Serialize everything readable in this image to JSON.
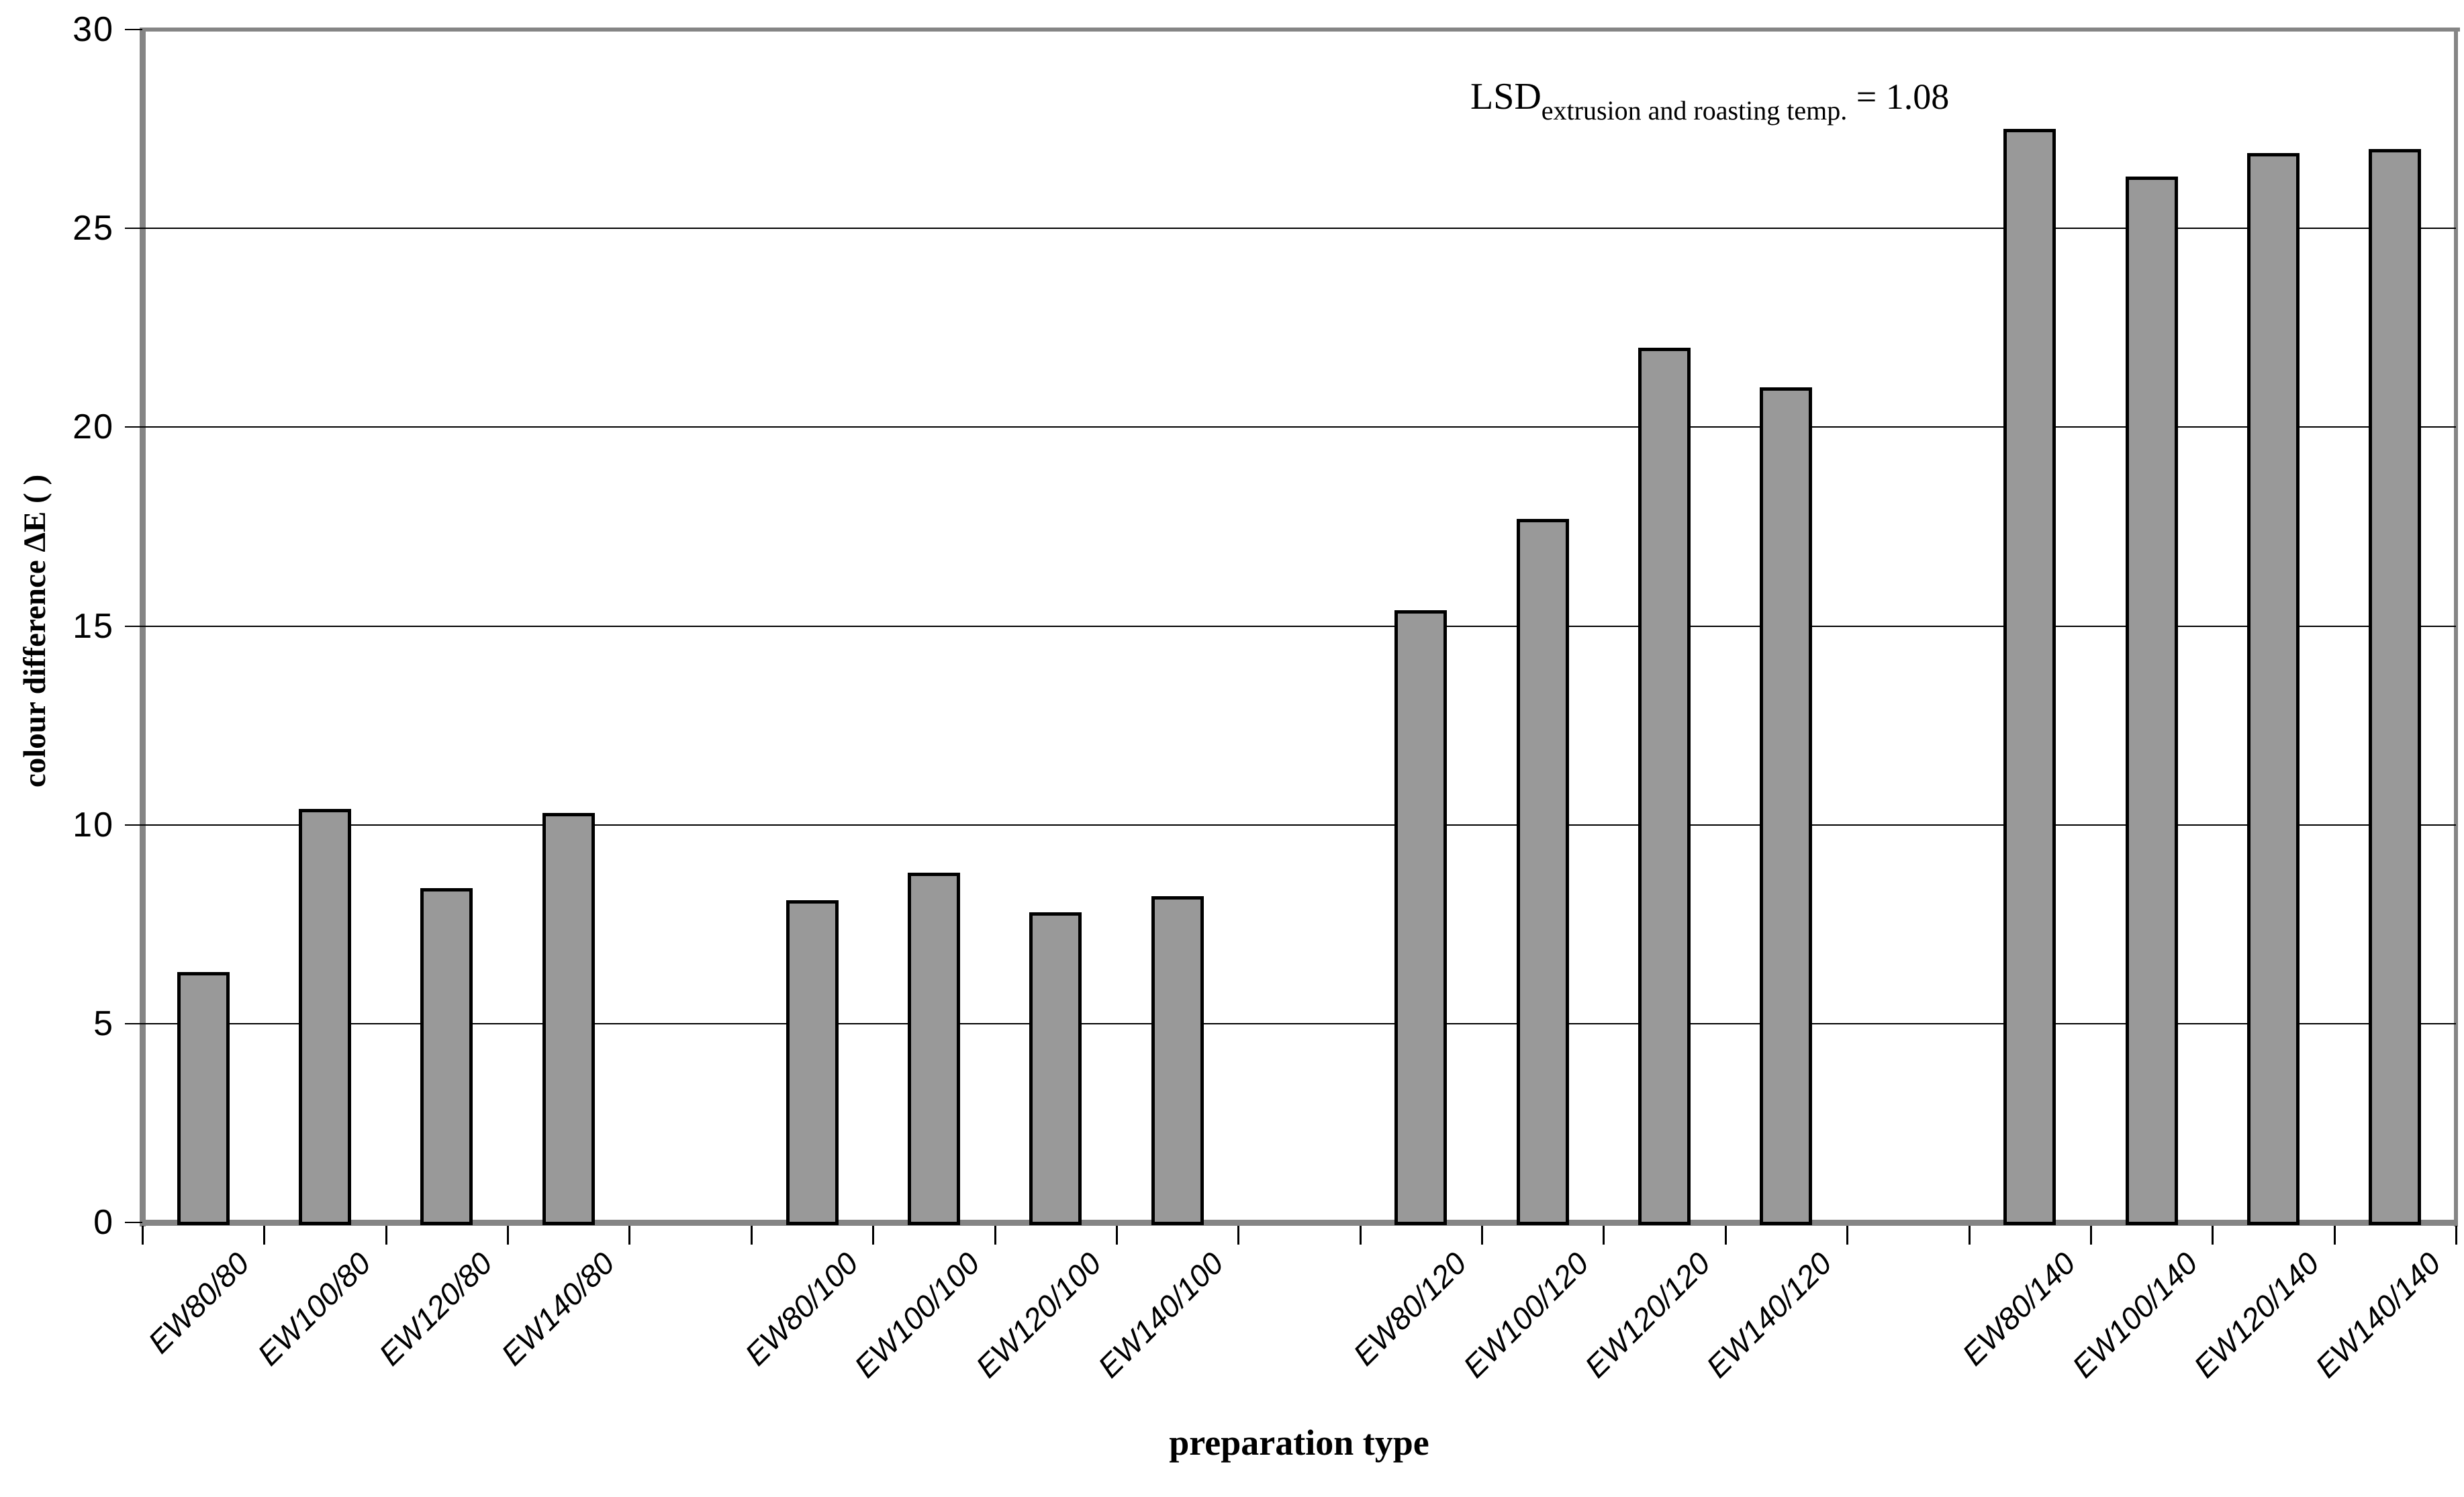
{
  "chart_data": {
    "type": "bar",
    "title": "",
    "xlabel": "preparation type",
    "ylabel": "colour difference ΔE ( )",
    "ylim": [
      0,
      30
    ],
    "yticks": [
      0,
      5,
      10,
      15,
      20,
      25,
      30
    ],
    "grid": "horizontal lines every 5 units",
    "legend_position": "none",
    "bar_fill_color": "#999999",
    "bar_border_color": "#000000",
    "frame_color": "#858585",
    "categories": [
      "EW80/80",
      "EW100/80",
      "EW120/80",
      "EW140/80",
      "EW80/100",
      "EW100/100",
      "EW120/100",
      "EW140/100",
      "EW80/120",
      "EW100/120",
      "EW120/120",
      "EW140/120",
      "EW80/140",
      "EW100/140",
      "EW120/140",
      "EW140/140"
    ],
    "values": [
      6.3,
      10.4,
      8.4,
      10.3,
      8.1,
      8.8,
      7.8,
      8.2,
      15.4,
      17.7,
      22.0,
      21.0,
      27.5,
      26.3,
      26.9,
      27.0
    ],
    "group_size": 4,
    "annotation": {
      "prefix": "LSD",
      "subscript": "extrusion and roasting temp.",
      "suffix": " = 1.08"
    }
  }
}
